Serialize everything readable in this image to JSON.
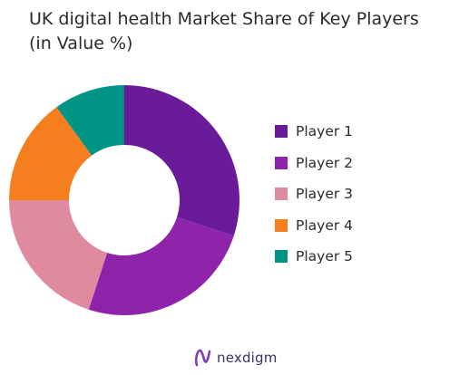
{
  "chart_data": {
    "type": "pie",
    "title_lines": [
      "UK digital health Market Share of Key Players",
      "(in Value %)"
    ],
    "labels": [
      "Player 1",
      "Player 2",
      "Player 3",
      "Player 4",
      "Player 5"
    ],
    "values": [
      30,
      25,
      20,
      15,
      10
    ],
    "colors": [
      "#6a1b9a",
      "#8e24aa",
      "#e08aa0",
      "#f57f1f",
      "#009485"
    ],
    "donut": true,
    "legend_position": "right"
  },
  "brand": {
    "name": "nexdigm",
    "logo_icon": "nexdigm-logo-icon",
    "color": "#7b3fbf"
  }
}
